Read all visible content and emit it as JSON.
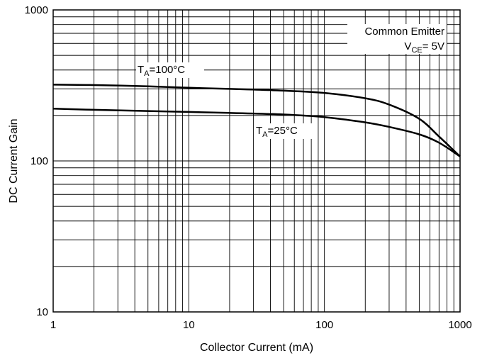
{
  "chart_data": {
    "type": "line",
    "title": "",
    "xlabel": "Collector Current (mA)",
    "ylabel": "DC Current Gain",
    "x_scale": "log",
    "y_scale": "log",
    "xlim": [
      1,
      1000
    ],
    "ylim": [
      10,
      1000
    ],
    "x_ticks": [
      "1",
      "10",
      "100",
      "1000"
    ],
    "y_ticks": [
      "10",
      "100",
      "1000"
    ],
    "grid": true,
    "series": [
      {
        "name": "TA=100°C",
        "label_main": "T",
        "label_sub": "A",
        "label_rest": "=100°C",
        "color": "#000000",
        "points": [
          [
            1,
            320
          ],
          [
            2,
            318
          ],
          [
            5,
            312
          ],
          [
            10,
            305
          ],
          [
            20,
            300
          ],
          [
            50,
            292
          ],
          [
            100,
            282
          ],
          [
            200,
            260
          ],
          [
            300,
            236
          ],
          [
            500,
            190
          ],
          [
            700,
            145
          ],
          [
            1000,
            107
          ]
        ]
      },
      {
        "name": "TA=25°C",
        "label_main": "T",
        "label_sub": "A",
        "label_rest": "=25°C",
        "color": "#000000",
        "points": [
          [
            1,
            222
          ],
          [
            2,
            218
          ],
          [
            5,
            214
          ],
          [
            10,
            211
          ],
          [
            20,
            208
          ],
          [
            50,
            203
          ],
          [
            100,
            195
          ],
          [
            200,
            180
          ],
          [
            300,
            168
          ],
          [
            500,
            150
          ],
          [
            700,
            132
          ],
          [
            1000,
            107
          ]
        ]
      }
    ],
    "annotations": {
      "condition_line1": "Common Emitter",
      "condition_v": "V",
      "condition_sub": "CE",
      "condition_rest": "= 5V"
    }
  }
}
